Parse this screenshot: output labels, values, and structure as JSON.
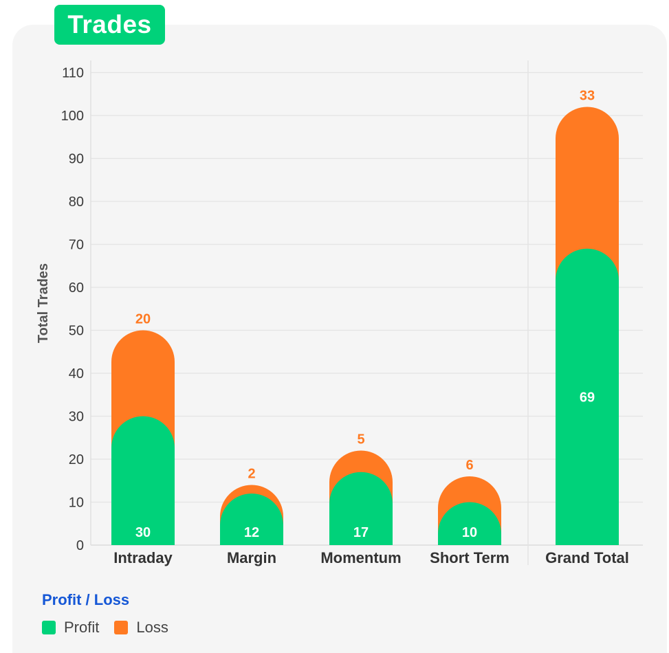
{
  "title": "Trades",
  "colors": {
    "profit": "#00d27a",
    "loss": "#ff7a22",
    "grid": "#e4e4e4"
  },
  "legend": {
    "title": "Profit / Loss",
    "items": [
      {
        "label": "Profit",
        "color": "#00d27a"
      },
      {
        "label": "Loss",
        "color": "#ff7a22"
      }
    ]
  },
  "chart_data": {
    "type": "bar",
    "stacked": true,
    "title": "Trades",
    "xlabel": "",
    "ylabel": "Total Trades",
    "ylim": [
      0,
      110
    ],
    "yticks": [
      0,
      10,
      20,
      30,
      40,
      50,
      60,
      70,
      80,
      90,
      100,
      110
    ],
    "categories": [
      "Intraday",
      "Margin",
      "Momentum",
      "Short Term",
      "Grand Total"
    ],
    "series": [
      {
        "name": "Profit",
        "values": [
          30,
          12,
          17,
          10,
          69
        ]
      },
      {
        "name": "Loss",
        "values": [
          20,
          2,
          5,
          6,
          33
        ]
      }
    ]
  }
}
